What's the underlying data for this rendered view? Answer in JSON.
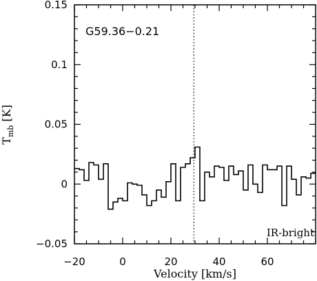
{
  "chart_data": {
    "type": "line",
    "style": "step",
    "source_label": "G59.36−0.21",
    "corner_label": "IR-bright",
    "xlabel": "Velocity [km/s]",
    "ylabel": "T",
    "ylabel_sub": "mb",
    "ylabel_unit": " [K]",
    "xlim": [
      -20,
      80
    ],
    "ylim": [
      -0.05,
      0.15
    ],
    "xticks": [
      -20,
      0,
      20,
      40,
      60
    ],
    "xtick_labels": [
      "−20",
      "0",
      "20",
      "40",
      "60"
    ],
    "yticks": [
      -0.05,
      0,
      0.05,
      0.1,
      0.15
    ],
    "ytick_labels": [
      "−0.05",
      "0",
      "0.05",
      "0.1",
      "0.15"
    ],
    "reference_velocity": 29.5,
    "grid": false,
    "x": [
      -20,
      -18,
      -16,
      -14,
      -12,
      -10,
      -8,
      -6,
      -4,
      -2,
      0,
      2,
      4,
      6,
      8,
      10,
      12,
      14,
      16,
      18,
      20,
      22,
      24,
      26,
      28,
      30,
      32,
      34,
      36,
      38,
      40,
      42,
      44,
      46,
      48,
      50,
      52,
      54,
      56,
      58,
      60,
      62,
      64,
      66,
      68,
      70,
      72,
      74,
      76,
      78
    ],
    "y": [
      0.013,
      0.012,
      0.003,
      0.018,
      0.016,
      0.004,
      0.017,
      -0.021,
      -0.015,
      -0.012,
      -0.014,
      0.001,
      0.0,
      -0.001,
      -0.009,
      -0.018,
      -0.014,
      -0.005,
      -0.011,
      0.002,
      0.017,
      -0.014,
      0.014,
      0.017,
      0.022,
      0.031,
      -0.014,
      0.01,
      0.006,
      0.015,
      0.014,
      0.003,
      0.015,
      0.008,
      0.011,
      -0.005,
      0.016,
      0.0,
      -0.007,
      0.016,
      0.012,
      0.012,
      0.015,
      -0.018,
      0.015,
      0.004,
      -0.009,
      0.006,
      0.005,
      0.009
    ]
  }
}
